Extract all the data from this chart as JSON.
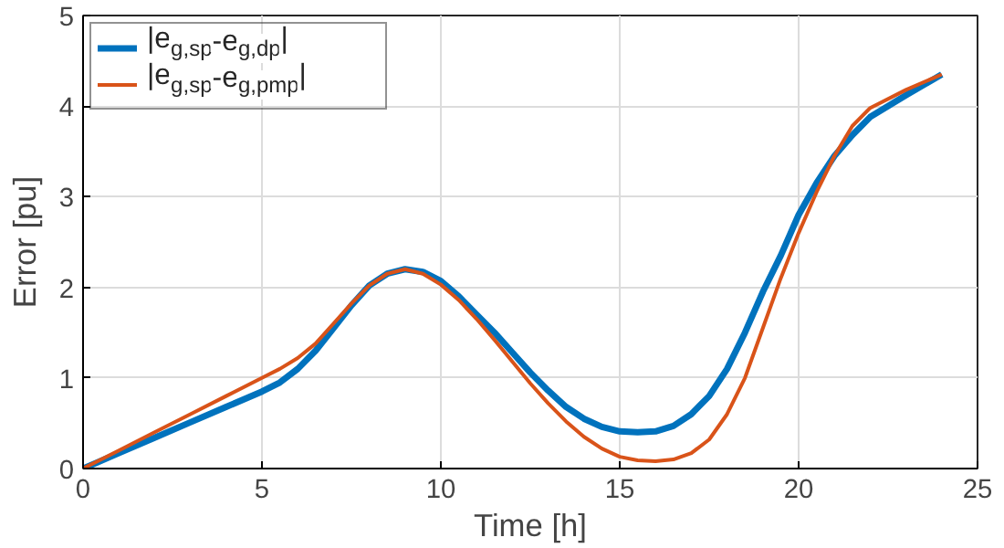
{
  "chart_data": {
    "type": "line",
    "xlabel": "Time [h]",
    "ylabel": "Error [pu]",
    "xlim": [
      0,
      25
    ],
    "ylim": [
      0,
      5
    ],
    "xticks": [
      0,
      5,
      10,
      15,
      20,
      25
    ],
    "yticks": [
      0,
      1,
      2,
      3,
      4,
      5
    ],
    "grid": true,
    "legend": "top left",
    "line_style": "solid",
    "marker": "none",
    "x": [
      0,
      1,
      2,
      3,
      4,
      5,
      5.5,
      6,
      6.5,
      7,
      7.5,
      8,
      8.5,
      9,
      9.5,
      10,
      10.5,
      11,
      11.5,
      12,
      12.5,
      13,
      13.5,
      14,
      14.5,
      15,
      15.5,
      16,
      16.5,
      17,
      17.5,
      18,
      18.5,
      19,
      19.5,
      20,
      20.5,
      21,
      21.5,
      22,
      23,
      24
    ],
    "series": [
      {
        "name": "|e$_{g,sp}$-e$_{g,dp}$|",
        "color": "#0072bd",
        "values": [
          0,
          0.17,
          0.34,
          0.51,
          0.68,
          0.85,
          0.95,
          1.1,
          1.3,
          1.55,
          1.8,
          2.02,
          2.15,
          2.2,
          2.17,
          2.07,
          1.9,
          1.7,
          1.5,
          1.28,
          1.06,
          0.86,
          0.68,
          0.55,
          0.46,
          0.41,
          0.4,
          0.41,
          0.47,
          0.6,
          0.8,
          1.1,
          1.5,
          1.95,
          2.35,
          2.8,
          3.15,
          3.45,
          3.68,
          3.88,
          4.12,
          4.35
        ]
      },
      {
        "name": "|e$_{g,sp}$-e$_{g,pmp}$|",
        "color": "#d95319",
        "values": [
          0,
          0.2,
          0.4,
          0.6,
          0.8,
          1.0,
          1.1,
          1.22,
          1.38,
          1.6,
          1.82,
          2.02,
          2.15,
          2.2,
          2.15,
          2.03,
          1.86,
          1.65,
          1.42,
          1.18,
          0.94,
          0.72,
          0.52,
          0.35,
          0.22,
          0.13,
          0.09,
          0.08,
          0.1,
          0.17,
          0.32,
          0.6,
          1.0,
          1.55,
          2.1,
          2.6,
          3.05,
          3.45,
          3.78,
          3.98,
          4.18,
          4.35
        ]
      }
    ]
  }
}
